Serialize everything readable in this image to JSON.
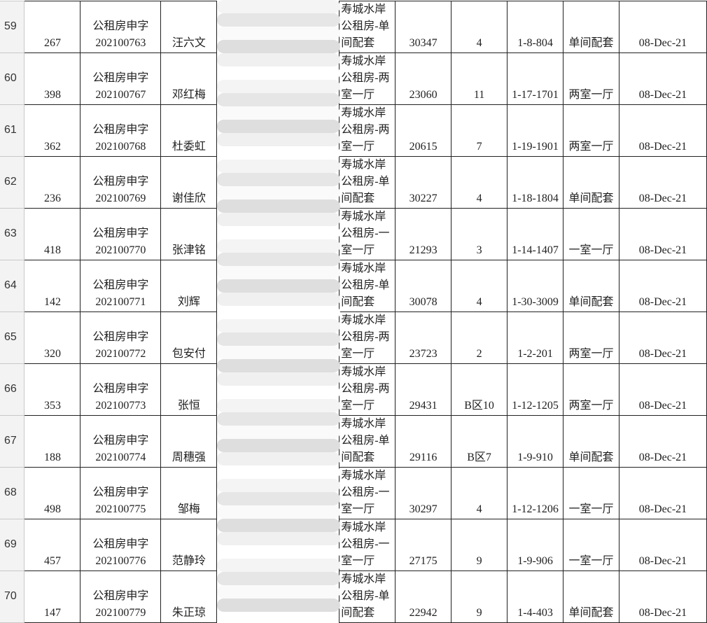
{
  "sheet": {
    "rows": [
      {
        "row": "59",
        "seq": "267",
        "prefix": "公租房申字",
        "appno": "202100763",
        "name": "汪六文",
        "project": "寿城水岸公租房-单间配套",
        "code": "30347",
        "bldg": "4",
        "unit": "1-8-804",
        "type": "单间配套",
        "date": "08-Dec-21"
      },
      {
        "row": "60",
        "seq": "398",
        "prefix": "公租房申字",
        "appno": "202100767",
        "name": "邓红梅",
        "project": "寿城水岸公租房-两室一厅",
        "code": "23060",
        "bldg": "11",
        "unit": "1-17-1701",
        "type": "两室一厅",
        "date": "08-Dec-21"
      },
      {
        "row": "61",
        "seq": "362",
        "prefix": "公租房申字",
        "appno": "202100768",
        "name": "杜委虹",
        "project": "寿城水岸公租房-两室一厅",
        "code": "20615",
        "bldg": "7",
        "unit": "1-19-1901",
        "type": "两室一厅",
        "date": "08-Dec-21"
      },
      {
        "row": "62",
        "seq": "236",
        "prefix": "公租房申字",
        "appno": "202100769",
        "name": "谢佳欣",
        "project": "寿城水岸公租房-单间配套",
        "code": "30227",
        "bldg": "4",
        "unit": "1-18-1804",
        "type": "单间配套",
        "date": "08-Dec-21"
      },
      {
        "row": "63",
        "seq": "418",
        "prefix": "公租房申字",
        "appno": "202100770",
        "name": "张津铭",
        "project": "寿城水岸公租房-一室一厅",
        "code": "21293",
        "bldg": "3",
        "unit": "1-14-1407",
        "type": "一室一厅",
        "date": "08-Dec-21"
      },
      {
        "row": "64",
        "seq": "142",
        "prefix": "公租房申字",
        "appno": "202100771",
        "name": "刘辉",
        "project": "寿城水岸公租房-单间配套",
        "code": "30078",
        "bldg": "4",
        "unit": "1-30-3009",
        "type": "单间配套",
        "date": "08-Dec-21"
      },
      {
        "row": "65",
        "seq": "320",
        "prefix": "公租房申字",
        "appno": "202100772",
        "name": "包安付",
        "project": "寿城水岸公租房-两室一厅",
        "code": "23723",
        "bldg": "2",
        "unit": "1-2-201",
        "type": "两室一厅",
        "date": "08-Dec-21"
      },
      {
        "row": "66",
        "seq": "353",
        "prefix": "公租房申字",
        "appno": "202100773",
        "name": "张恒",
        "project": "寿城水岸公租房-两室一厅",
        "code": "29431",
        "bldg": "B区10",
        "unit": "1-12-1205",
        "type": "两室一厅",
        "date": "08-Dec-21"
      },
      {
        "row": "67",
        "seq": "188",
        "prefix": "公租房申字",
        "appno": "202100774",
        "name": "周穗强",
        "project": "寿城水岸公租房-单间配套",
        "code": "29116",
        "bldg": "B区7",
        "unit": "1-9-910",
        "type": "单间配套",
        "date": "08-Dec-21"
      },
      {
        "row": "68",
        "seq": "498",
        "prefix": "公租房申字",
        "appno": "202100775",
        "name": "邹梅",
        "project": "寿城水岸公租房-一室一厅",
        "code": "30297",
        "bldg": "4",
        "unit": "1-12-1206",
        "type": "一室一厅",
        "date": "08-Dec-21"
      },
      {
        "row": "69",
        "seq": "457",
        "prefix": "公租房申字",
        "appno": "202100776",
        "name": "范静玲",
        "project": "寿城水岸公租房-一室一厅",
        "code": "27175",
        "bldg": "9",
        "unit": "1-9-906",
        "type": "一室一厅",
        "date": "08-Dec-21"
      },
      {
        "row": "70",
        "seq": "147",
        "prefix": "公租房申字",
        "appno": "202100779",
        "name": "朱正琼",
        "project": "寿城水岸公租房-单间配套",
        "code": "22942",
        "bldg": "9",
        "unit": "1-4-403",
        "type": "单间配套",
        "date": "08-Dec-21"
      }
    ]
  }
}
